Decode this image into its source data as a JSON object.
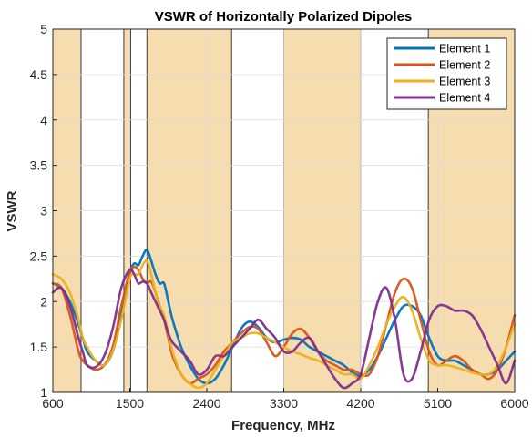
{
  "chart_data": {
    "type": "line",
    "title": "VSWR of Horizontally Polarized Dipoles",
    "xlabel": "Frequency, MHz",
    "ylabel": "VSWR",
    "xlim": [
      600,
      6000
    ],
    "ylim": [
      1,
      5
    ],
    "xticks": [
      600,
      1500,
      2400,
      3300,
      4200,
      5100,
      6000
    ],
    "yticks": [
      1,
      1.5,
      2,
      2.5,
      3,
      3.5,
      4,
      4.5,
      5
    ],
    "grid": true,
    "legend_position": "top-right",
    "bands": [
      [
        600,
        930
      ],
      [
        1430,
        1510
      ],
      [
        1700,
        2690
      ],
      [
        3300,
        4200
      ],
      [
        4990,
        6000
      ]
    ],
    "band_color": "#f6ddb0",
    "series": [
      {
        "name": "Element 1",
        "color": "#0072BD",
        "x": [
          600,
          700,
          800,
          900,
          950,
          1000,
          1100,
          1200,
          1300,
          1400,
          1500,
          1550,
          1600,
          1650,
          1700,
          1750,
          1800,
          1850,
          1900,
          1950,
          2000,
          2100,
          2200,
          2300,
          2400,
          2500,
          2600,
          2700,
          2800,
          2900,
          3000,
          3100,
          3200,
          3300,
          3400,
          3500,
          3600,
          3700,
          3800,
          3900,
          4000,
          4100,
          4200,
          4300,
          4400,
          4500,
          4600,
          4700,
          4800,
          4900,
          5000,
          5100,
          5200,
          5300,
          5400,
          5500,
          5600,
          5700,
          5800,
          5900,
          6000
        ],
        "y": [
          2.2,
          2.15,
          2.0,
          1.75,
          1.6,
          1.45,
          1.35,
          1.3,
          1.45,
          1.85,
          2.3,
          2.42,
          2.4,
          2.5,
          2.57,
          2.45,
          2.3,
          2.2,
          2.2,
          2.0,
          1.8,
          1.5,
          1.3,
          1.15,
          1.1,
          1.15,
          1.3,
          1.5,
          1.7,
          1.78,
          1.72,
          1.6,
          1.55,
          1.58,
          1.6,
          1.58,
          1.5,
          1.45,
          1.4,
          1.35,
          1.3,
          1.22,
          1.18,
          1.25,
          1.4,
          1.6,
          1.8,
          1.95,
          1.95,
          1.85,
          1.6,
          1.4,
          1.35,
          1.35,
          1.3,
          1.25,
          1.2,
          1.2,
          1.25,
          1.35,
          1.45
        ]
      },
      {
        "name": "Element 2",
        "color": "#D95319",
        "x": [
          600,
          700,
          800,
          900,
          950,
          1000,
          1100,
          1200,
          1300,
          1400,
          1500,
          1550,
          1600,
          1650,
          1700,
          1750,
          1800,
          1850,
          1900,
          1950,
          2000,
          2100,
          2200,
          2300,
          2400,
          2500,
          2600,
          2700,
          2800,
          2900,
          3000,
          3100,
          3200,
          3300,
          3400,
          3500,
          3600,
          3700,
          3800,
          3900,
          4000,
          4100,
          4200,
          4300,
          4400,
          4500,
          4600,
          4700,
          4800,
          4900,
          5000,
          5100,
          5200,
          5300,
          5400,
          5500,
          5600,
          5700,
          5800,
          5900,
          6000
        ],
        "y": [
          2.2,
          2.15,
          1.85,
          1.45,
          1.35,
          1.3,
          1.25,
          1.3,
          1.5,
          1.95,
          2.32,
          2.38,
          2.35,
          2.25,
          2.2,
          2.22,
          2.1,
          1.95,
          1.8,
          1.6,
          1.4,
          1.2,
          1.1,
          1.15,
          1.2,
          1.3,
          1.45,
          1.55,
          1.65,
          1.72,
          1.7,
          1.55,
          1.4,
          1.5,
          1.65,
          1.7,
          1.6,
          1.45,
          1.35,
          1.3,
          1.25,
          1.25,
          1.2,
          1.2,
          1.4,
          1.75,
          2.1,
          2.25,
          2.15,
          1.8,
          1.45,
          1.3,
          1.35,
          1.4,
          1.35,
          1.25,
          1.2,
          1.15,
          1.25,
          1.5,
          1.85
        ]
      },
      {
        "name": "Element 3",
        "color": "#EDB120",
        "x": [
          600,
          700,
          800,
          900,
          950,
          1000,
          1100,
          1200,
          1300,
          1400,
          1500,
          1550,
          1600,
          1650,
          1700,
          1750,
          1800,
          1850,
          1900,
          1950,
          2000,
          2100,
          2200,
          2300,
          2400,
          2500,
          2600,
          2700,
          2800,
          2900,
          3000,
          3100,
          3200,
          3300,
          3400,
          3500,
          3600,
          3700,
          3800,
          3900,
          4000,
          4100,
          4200,
          4300,
          4400,
          4500,
          4600,
          4700,
          4800,
          4900,
          5000,
          5100,
          5200,
          5300,
          5400,
          5500,
          5600,
          5700,
          5800,
          5900,
          6000
        ],
        "y": [
          2.3,
          2.25,
          2.1,
          1.8,
          1.6,
          1.5,
          1.35,
          1.3,
          1.45,
          1.8,
          2.25,
          2.3,
          2.3,
          2.4,
          2.45,
          2.3,
          2.1,
          1.95,
          1.85,
          1.65,
          1.45,
          1.2,
          1.1,
          1.05,
          1.1,
          1.25,
          1.4,
          1.55,
          1.6,
          1.65,
          1.65,
          1.6,
          1.55,
          1.5,
          1.45,
          1.42,
          1.38,
          1.35,
          1.3,
          1.25,
          1.2,
          1.2,
          1.15,
          1.3,
          1.5,
          1.75,
          1.95,
          2.05,
          1.9,
          1.6,
          1.35,
          1.3,
          1.3,
          1.28,
          1.25,
          1.22,
          1.2,
          1.2,
          1.3,
          1.5,
          1.75
        ]
      },
      {
        "name": "Element 4",
        "color": "#7E2F8E",
        "x": [
          600,
          700,
          800,
          900,
          950,
          1000,
          1100,
          1200,
          1300,
          1400,
          1500,
          1550,
          1600,
          1650,
          1700,
          1750,
          1800,
          1850,
          1900,
          1950,
          2000,
          2100,
          2200,
          2300,
          2400,
          2500,
          2600,
          2700,
          2800,
          2900,
          3000,
          3100,
          3200,
          3300,
          3400,
          3500,
          3600,
          3700,
          3800,
          3900,
          4000,
          4100,
          4200,
          4300,
          4400,
          4500,
          4600,
          4700,
          4800,
          4900,
          5000,
          5100,
          5200,
          5300,
          5400,
          5500,
          5600,
          5700,
          5800,
          5900,
          6000
        ],
        "y": [
          2.1,
          2.15,
          1.95,
          1.6,
          1.45,
          1.3,
          1.28,
          1.4,
          1.7,
          2.15,
          2.35,
          2.3,
          2.2,
          2.22,
          2.2,
          2.1,
          2.0,
          1.9,
          1.8,
          1.65,
          1.55,
          1.45,
          1.35,
          1.2,
          1.25,
          1.4,
          1.4,
          1.5,
          1.6,
          1.7,
          1.8,
          1.7,
          1.6,
          1.45,
          1.45,
          1.55,
          1.6,
          1.45,
          1.3,
          1.15,
          1.05,
          1.1,
          1.2,
          1.6,
          2.0,
          2.15,
          1.8,
          1.2,
          1.15,
          1.45,
          1.8,
          1.95,
          1.95,
          1.9,
          1.9,
          1.85,
          1.7,
          1.5,
          1.3,
          1.1,
          1.35
        ]
      }
    ]
  }
}
